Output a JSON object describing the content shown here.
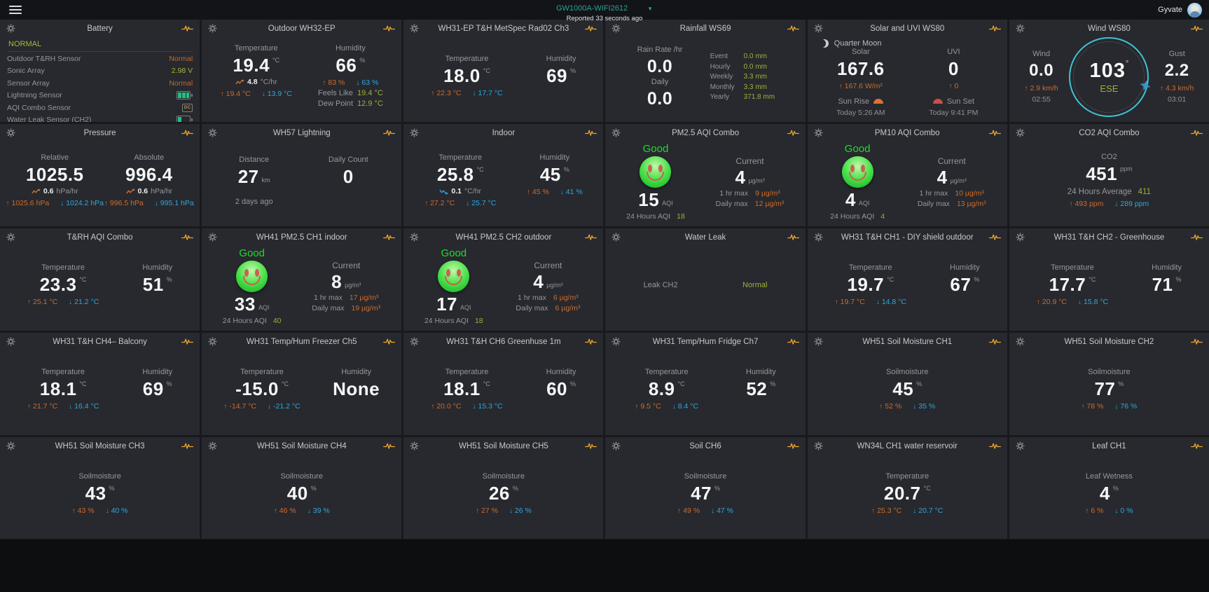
{
  "top_bar": {
    "device_name": "GW1000A-WIFI2612",
    "reported": "Reported 33 seconds ago",
    "user_name": "Gyvate"
  },
  "icons": {
    "dc_label": "DC"
  },
  "colors": {
    "accent_teal": "#2ca392",
    "max_orange": "#cf6b2c",
    "min_blue": "#2ea7de",
    "value_green": "#9ab23c",
    "good_green": "#1fdc2d",
    "icon_yellow": "#eda52e",
    "compass_teal": "#3fc2d4",
    "card_bg": "#27292e"
  },
  "cards": [
    {
      "type": "battery",
      "title": "Battery",
      "status": "NORMAL",
      "rows": [
        {
          "label": "Outdoor T&RH Sensor",
          "value": "Normal",
          "color": "orange"
        },
        {
          "label": "Sonic Array",
          "value": "2.98 V",
          "color": "green"
        },
        {
          "label": "Sensor Array",
          "value": "Normal",
          "color": "orange"
        },
        {
          "label": "Lightning Sensor",
          "icon": "battery-full"
        },
        {
          "label": "AQI Combo Sensor",
          "icon": "dc"
        },
        {
          "label": "Water Leak Sensor (CH2)",
          "icon": "battery-low"
        }
      ]
    },
    {
      "type": "metrics",
      "title": "Outdoor WH32-EP",
      "blocks": [
        {
          "label": "Temperature",
          "value": "19.4",
          "unit": "°C",
          "trend": {
            "dir": "up",
            "value": "4.8",
            "unit": "°C/hr"
          },
          "max": "19.4 °C",
          "min": "13.9 °C"
        },
        {
          "label": "Humidity",
          "value": "66",
          "unit": "%",
          "max": "83 %",
          "min": "63 %",
          "extras": [
            {
              "label": "Feels Like",
              "value": "19.4 °C"
            },
            {
              "label": "Dew Point",
              "value": "12.9 °C"
            }
          ]
        }
      ]
    },
    {
      "type": "metrics",
      "title": "WH31-EP T&H MetSpec Rad02 Ch3",
      "blocks": [
        {
          "label": "Temperature",
          "value": "18.0",
          "unit": "°C",
          "max": "22.3 °C",
          "min": "17.7 °C"
        },
        {
          "label": "Humidity",
          "value": "69",
          "unit": "%"
        }
      ]
    },
    {
      "type": "rain",
      "title": "Rainfall WS69",
      "left": [
        {
          "label": "Rain Rate /hr",
          "value": "0.0"
        },
        {
          "label": "Daily",
          "value": "0.0"
        }
      ],
      "list": [
        {
          "label": "Event",
          "value": "0.0 mm"
        },
        {
          "label": "Hourly",
          "value": "0.0 mm"
        },
        {
          "label": "Weekly",
          "value": "3.3 mm"
        },
        {
          "label": "Monthly",
          "value": "3.3 mm"
        },
        {
          "label": "Yearly",
          "value": "371.8 mm"
        }
      ]
    },
    {
      "type": "solar",
      "title": "Solar and UVI WS80",
      "moon_label": "Quarter Moon",
      "blocks": [
        {
          "label": "Solar",
          "value": "167.6",
          "max": "167.6 W/m²",
          "sun_label": "Sun Rise",
          "sun_time": "Today 5:26 AM",
          "sun_icon": "sunrise-icon",
          "icon_after": true
        },
        {
          "label": "UVI",
          "value": "0",
          "max": "0",
          "sun_label": "Sun Set",
          "sun_time": "Today 9:41 PM",
          "sun_icon": "sunset-icon",
          "icon_after": false
        }
      ]
    },
    {
      "type": "wind",
      "title": "Wind WS80",
      "left": {
        "label": "Wind",
        "value": "0.0",
        "max": "2.9 km/h",
        "time": "02:55"
      },
      "right": {
        "label": "Gust",
        "value": "2.2",
        "max": "4.3 km/h",
        "time": "03:01"
      },
      "compass": {
        "degrees": "103",
        "degree_symbol": "°",
        "direction": "ESE"
      }
    },
    {
      "type": "metrics",
      "title": "Pressure",
      "blocks": [
        {
          "label": "Relative",
          "value": "1025.5",
          "trend": {
            "dir": "up",
            "value": "0.6",
            "unit": "hPa/hr"
          },
          "max": "1025.6 hPa",
          "min": "1024.2 hPa"
        },
        {
          "label": "Absolute",
          "value": "996.4",
          "trend": {
            "dir": "up",
            "value": "0.6",
            "unit": "hPa/hr"
          },
          "max": "996.5 hPa",
          "min": "995.1 hPa"
        }
      ]
    },
    {
      "type": "metrics",
      "title": "WH57 Lightning",
      "blocks": [
        {
          "label": "Distance",
          "value": "27",
          "unit": "km",
          "unit_pos": "sub",
          "ago": "2 days ago"
        },
        {
          "label": "Daily Count",
          "value": "0"
        }
      ]
    },
    {
      "type": "metrics",
      "title": "Indoor",
      "blocks": [
        {
          "label": "Temperature",
          "value": "25.8",
          "unit": "°C",
          "trend": {
            "dir": "down",
            "value": "0.1",
            "unit": "°C/hr"
          },
          "max": "27.2 °C",
          "min": "25.7 °C"
        },
        {
          "label": "Humidity",
          "value": "45",
          "unit": "%",
          "max": "45 %",
          "min": "41 %"
        }
      ]
    },
    {
      "type": "aqi",
      "title": "PM2.5 AQI Combo",
      "quality": "Good",
      "aqi": "15",
      "aqi_unit": "AQI",
      "day_label": "24 Hours AQI",
      "day_value": "18",
      "current_label": "Current",
      "current_value": "4",
      "current_unit": "µg/m³",
      "rows": [
        {
          "label": "1 hr max",
          "value": "9 µg/m³"
        },
        {
          "label": "Daily max",
          "value": "12 µg/m³"
        }
      ]
    },
    {
      "type": "aqi",
      "title": "PM10 AQI Combo",
      "quality": "Good",
      "aqi": "4",
      "aqi_unit": "AQI",
      "day_label": "24 Hours AQI",
      "day_value": "4",
      "current_label": "Current",
      "current_value": "4",
      "current_unit": "µg/m³",
      "rows": [
        {
          "label": "1 hr max",
          "value": "10 µg/m³"
        },
        {
          "label": "Daily max",
          "value": "13 µg/m³"
        }
      ]
    },
    {
      "type": "co2",
      "title": "CO2 AQI Combo",
      "label": "CO2",
      "value": "451",
      "unit": "ppm",
      "avg_label": "24 Hours Average",
      "avg_value": "411",
      "max": "493 ppm",
      "min": "289 ppm"
    },
    {
      "type": "metrics",
      "title": "T&RH AQI Combo",
      "blocks": [
        {
          "label": "Temperature",
          "value": "23.3",
          "unit": "°C",
          "max": "25.1 °C",
          "min": "21.2 °C"
        },
        {
          "label": "Humidity",
          "value": "51",
          "unit": "%"
        }
      ]
    },
    {
      "type": "aqi",
      "title": "WH41 PM2.5 CH1 indoor",
      "quality": "Good",
      "aqi": "33",
      "aqi_unit": "AQI",
      "day_label": "24 Hours AQI",
      "day_value": "40",
      "current_label": "Current",
      "current_value": "8",
      "current_unit": "µg/m³",
      "rows": [
        {
          "label": "1 hr max",
          "value": "17 µg/m³"
        },
        {
          "label": "Daily max",
          "value": "19 µg/m³"
        }
      ]
    },
    {
      "type": "aqi",
      "title": "WH41 PM2.5 CH2 outdoor",
      "quality": "Good",
      "aqi": "17",
      "aqi_unit": "AQI",
      "day_label": "24 Hours AQI",
      "day_value": "18",
      "current_label": "Current",
      "current_value": "4",
      "current_unit": "µg/m³",
      "rows": [
        {
          "label": "1 hr max",
          "value": "6 µg/m³"
        },
        {
          "label": "Daily max",
          "value": "6 µg/m³"
        }
      ]
    },
    {
      "type": "leak",
      "title": "Water Leak",
      "label": "Leak CH2",
      "value": "Normal"
    },
    {
      "type": "metrics",
      "title": "WH31 T&H CH1 - DIY shield outdoor",
      "blocks": [
        {
          "label": "Temperature",
          "value": "19.7",
          "unit": "°C",
          "max": "19.7 °C",
          "min": "14.8 °C"
        },
        {
          "label": "Humidity",
          "value": "67",
          "unit": "%"
        }
      ]
    },
    {
      "type": "metrics",
      "title": "WH31 T&H CH2 - Greenhouse",
      "blocks": [
        {
          "label": "Temperature",
          "value": "17.7",
          "unit": "°C",
          "max": "20.9 °C",
          "min": "15.8 °C"
        },
        {
          "label": "Humidity",
          "value": "71",
          "unit": "%"
        }
      ]
    },
    {
      "type": "metrics",
      "title": "WH31 T&H CH4– Balcony",
      "blocks": [
        {
          "label": "Temperature",
          "value": "18.1",
          "unit": "°C",
          "max": "21.7 °C",
          "min": "16.4 °C"
        },
        {
          "label": "Humidity",
          "value": "69",
          "unit": "%"
        }
      ]
    },
    {
      "type": "metrics",
      "title": "WH31 Temp/Hum Freezer Ch5",
      "blocks": [
        {
          "label": "Temperature",
          "value": "-15.0",
          "unit": "°C",
          "max": "-14.7 °C",
          "min": "-21.2 °C"
        },
        {
          "label": "Humidity",
          "value": "None"
        }
      ]
    },
    {
      "type": "metrics",
      "title": "WH31 T&H CH6 Greenhuse 1m",
      "blocks": [
        {
          "label": "Temperature",
          "value": "18.1",
          "unit": "°C",
          "max": "20.0 °C",
          "min": "15.3 °C"
        },
        {
          "label": "Humidity",
          "value": "60",
          "unit": "%"
        }
      ]
    },
    {
      "type": "metrics",
      "title": "WH31 Temp/Hum Fridge Ch7",
      "blocks": [
        {
          "label": "Temperature",
          "value": "8.9",
          "unit": "°C",
          "max": "9.5 °C",
          "min": "8.4 °C"
        },
        {
          "label": "Humidity",
          "value": "52",
          "unit": "%"
        }
      ]
    },
    {
      "type": "single",
      "title": "WH51 Soil Moisture CH1",
      "label": "Soilmoisture",
      "value": "45",
      "unit": "%",
      "max": "52 %",
      "min": "35 %"
    },
    {
      "type": "single",
      "title": "WH51 Soil Moisture CH2",
      "label": "Soilmoisture",
      "value": "77",
      "unit": "%",
      "max": "78 %",
      "min": "76 %"
    },
    {
      "type": "single",
      "title": "WH51 Soil Moisture CH3",
      "label": "Soilmoisture",
      "value": "43",
      "unit": "%",
      "max": "43 %",
      "min": "40 %"
    },
    {
      "type": "single",
      "title": "WH51 Soil Moisture CH4",
      "label": "Soilmoisture",
      "value": "40",
      "unit": "%",
      "max": "46 %",
      "min": "39 %"
    },
    {
      "type": "single",
      "title": "WH51 Soil Moisture CH5",
      "label": "Soilmoisture",
      "value": "26",
      "unit": "%",
      "max": "27 %",
      "min": "26 %"
    },
    {
      "type": "single",
      "title": "Soil CH6",
      "label": "Soilmoisture",
      "value": "47",
      "unit": "%",
      "max": "49 %",
      "min": "47 %"
    },
    {
      "type": "single",
      "title": "WN34L CH1 water reservoir",
      "label": "Temperature",
      "value": "20.7",
      "unit": "°C",
      "max": "25.3 °C",
      "min": "20.7 °C"
    },
    {
      "type": "single",
      "title": "Leaf CH1",
      "label": "Leaf Wetness",
      "value": "4",
      "unit": "%",
      "max": "6 %",
      "min": "0 %"
    }
  ]
}
